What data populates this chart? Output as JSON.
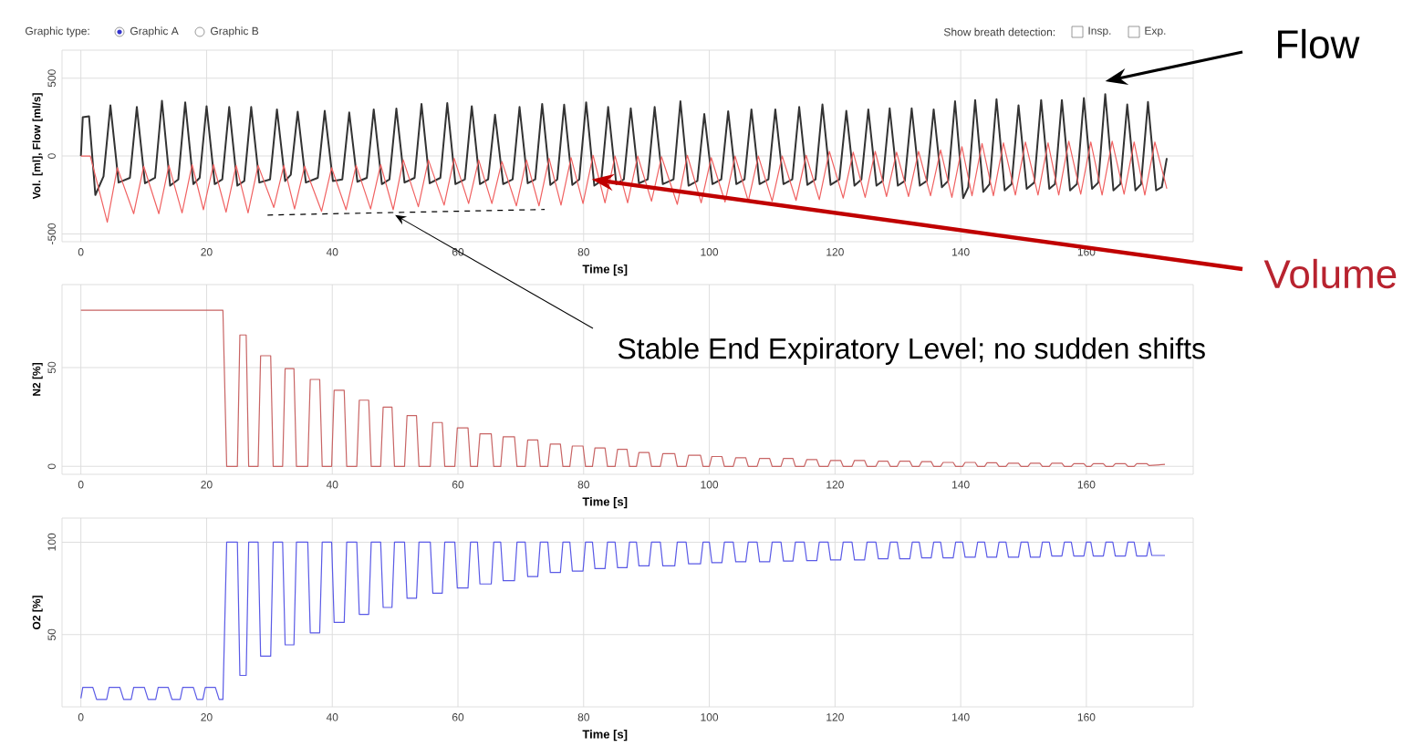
{
  "chart_data": [
    {
      "type": "line",
      "xlabel": "Time [s]",
      "ylabel": "Vol. [ml], Flow [ml/s]",
      "xlim": [
        -3,
        177
      ],
      "ylim": [
        -550,
        680
      ],
      "xticks": [
        0,
        20,
        40,
        60,
        80,
        100,
        120,
        140,
        160
      ],
      "yticks": [
        -500,
        0,
        500
      ],
      "grid": true,
      "annotations": [
        "Graphic type:",
        "Graphic A",
        "Graphic B",
        "Show breath detection:",
        "Insp.",
        "Exp.",
        {
          "text": "Stable End Expiratory Level; no sudden shifts",
          "x": 50,
          "y": -379
        }
      ],
      "series": [
        {
          "name": "Flow",
          "color": "#333333",
          "x": [
            0,
            0.3,
            1.3,
            2.3,
            3.6,
            4.7,
            6.0,
            7.8,
            8.9,
            10.2,
            11.8,
            12.9,
            14.2,
            15.5,
            16.6,
            17.9,
            18.9,
            20.0,
            21.3,
            22.5,
            23.6,
            24.9,
            26.0,
            27.1,
            28.4,
            30.1,
            31.2,
            32.5,
            33.4,
            34.5,
            35.8,
            37.7,
            38.8,
            40.1,
            41.6,
            42.7,
            44.0,
            45.5,
            46.6,
            47.9,
            49.1,
            50.2,
            51.5,
            53.1,
            54.2,
            55.5,
            57.2,
            58.3,
            59.6,
            61.1,
            62.2,
            63.5,
            64.8,
            65.9,
            67.2,
            68.7,
            69.8,
            71.1,
            72.3,
            73.4,
            74.7,
            75.8,
            76.9,
            78.2,
            79.3,
            80.4,
            81.7,
            82.8,
            83.9,
            85.2,
            86.4,
            87.5,
            88.8,
            90.2,
            91.3,
            92.6,
            94.3,
            95.4,
            96.7,
            98.1,
            99.2,
            100.5,
            101.9,
            103.0,
            104.3,
            105.6,
            106.7,
            108.0,
            109.4,
            110.5,
            111.8,
            113.2,
            114.3,
            115.6,
            116.9,
            118.0,
            119.3,
            120.7,
            121.8,
            123.1,
            124.2,
            125.3,
            126.6,
            127.6,
            128.7,
            130.0,
            131.1,
            132.2,
            133.5,
            134.6,
            135.7,
            137.0,
            138.0,
            139.1,
            140.4,
            141.2,
            142.3,
            143.6,
            144.6,
            145.7,
            147.0,
            148.1,
            149.2,
            150.5,
            151.7,
            152.8,
            154.1,
            155.0,
            156.1,
            157.4,
            158.5,
            159.6,
            160.9,
            161.9,
            163.0,
            164.3,
            165.4,
            166.5,
            167.8,
            168.7,
            169.8,
            171.1,
            172.0,
            172.8
          ],
          "values": [
            0,
            250,
            255,
            -250,
            -130,
            325,
            -170,
            -140,
            315,
            -175,
            -140,
            355,
            -190,
            -150,
            345,
            -180,
            -140,
            320,
            -180,
            -150,
            315,
            -190,
            -160,
            315,
            -170,
            -150,
            300,
            -160,
            -120,
            285,
            -170,
            -140,
            290,
            -160,
            -150,
            280,
            -165,
            -140,
            300,
            -180,
            -150,
            305,
            -170,
            -140,
            335,
            -175,
            -140,
            340,
            -180,
            -150,
            320,
            -180,
            -150,
            265,
            -180,
            -150,
            315,
            -175,
            -150,
            335,
            -185,
            -150,
            330,
            -185,
            -150,
            345,
            -190,
            -160,
            315,
            -180,
            -150,
            306,
            -175,
            -150,
            315,
            -180,
            -150,
            352,
            -190,
            -160,
            270,
            -180,
            -150,
            288,
            -180,
            -150,
            300,
            -180,
            -150,
            300,
            -180,
            -150,
            315,
            -185,
            -150,
            331,
            -185,
            -150,
            290,
            -190,
            -150,
            300,
            -190,
            -160,
            306,
            -190,
            -160,
            306,
            -190,
            -160,
            300,
            -200,
            -160,
            352,
            -270,
            -200,
            360,
            -230,
            -180,
            365,
            -220,
            -180,
            326,
            -210,
            -170,
            360,
            -210,
            -180,
            360,
            -220,
            -180,
            372,
            -210,
            -170,
            398,
            -220,
            -180,
            331,
            -220,
            -180,
            347,
            -220,
            -200,
            -13
          ]
        },
        {
          "name": "Volume",
          "color": "#f06262",
          "x": [
            0,
            1.5,
            4.2,
            5.8,
            8.4,
            10.0,
            12.4,
            14.0,
            16.1,
            17.7,
            19.5,
            21.1,
            23.1,
            24.7,
            26.6,
            28.2,
            30.7,
            32.3,
            34.0,
            35.6,
            38.3,
            39.9,
            42.2,
            43.8,
            46.1,
            47.7,
            49.7,
            51.3,
            53.7,
            55.3,
            57.8,
            59.4,
            61.7,
            63.3,
            65.4,
            67.0,
            69.3,
            70.9,
            72.9,
            74.5,
            76.4,
            78.0,
            79.9,
            81.5,
            83.4,
            85.0,
            87.0,
            88.6,
            90.8,
            92.4,
            94.9,
            96.5,
            98.7,
            100.3,
            102.5,
            104.1,
            106.2,
            107.8,
            110.0,
            111.6,
            113.8,
            115.4,
            117.5,
            119.1,
            121.3,
            122.9,
            124.8,
            126.4,
            128.2,
            129.8,
            131.7,
            133.3,
            135.2,
            136.8,
            138.6,
            140.2,
            141.8,
            143.4,
            145.2,
            146.8,
            148.7,
            150.3,
            152.3,
            153.9,
            155.6,
            157.2,
            159.1,
            160.7,
            162.5,
            164.1,
            166.0,
            167.6,
            169.3,
            170.9,
            172.8
          ],
          "values": [
            0,
            0,
            -425,
            -75,
            -370,
            -65,
            -370,
            -60,
            -365,
            -55,
            -345,
            -55,
            -360,
            -60,
            -365,
            -60,
            -330,
            -60,
            -340,
            -65,
            -355,
            -75,
            -345,
            -60,
            -340,
            -55,
            -345,
            -25,
            -325,
            -25,
            -315,
            -15,
            -305,
            -25,
            -305,
            -35,
            -320,
            -25,
            -320,
            -15,
            -315,
            -10,
            -305,
            5,
            -300,
            0,
            -300,
            0,
            -290,
            -5,
            -310,
            5,
            -300,
            -10,
            -295,
            0,
            -290,
            0,
            -290,
            0,
            -285,
            5,
            -280,
            30,
            -270,
            25,
            -265,
            30,
            -260,
            25,
            -260,
            30,
            -255,
            40,
            -265,
            60,
            -255,
            80,
            -255,
            85,
            -250,
            90,
            -250,
            85,
            -250,
            95,
            -245,
            90,
            -250,
            95,
            -245,
            90,
            -250,
            90,
            -210
          ]
        },
        {
          "color": "#000000",
          "line_style": "dashed",
          "x": [
            29.7,
            73.8
          ],
          "values": [
            -379,
            -343
          ]
        }
      ]
    },
    {
      "type": "line",
      "xlabel": "Time [s]",
      "ylabel": "N2 [%]",
      "xlim": [
        -3,
        177
      ],
      "ylim": [
        -4,
        92
      ],
      "xticks": [
        0,
        20,
        40,
        60,
        80,
        100,
        120,
        140,
        160
      ],
      "yticks": [
        0,
        50
      ],
      "grid": true,
      "series": [
        {
          "color": "#c86464",
          "x": [
            0,
            22.6,
            23.2,
            24.9,
            25.3,
            26.3,
            26.7,
            28.2,
            28.6,
            30.2,
            30.6,
            32.1,
            32.5,
            33.9,
            34.3,
            36.1,
            36.5,
            38.0,
            38.4,
            39.9,
            40.3,
            41.9,
            42.3,
            43.9,
            44.3,
            45.8,
            46.2,
            47.7,
            48.1,
            49.5,
            49.9,
            51.5,
            51.9,
            53.4,
            53.8,
            55.6,
            56.0,
            57.5,
            57.9,
            59.5,
            59.9,
            61.6,
            62.0,
            63.1,
            63.5,
            65.3,
            65.7,
            66.8,
            67.2,
            69.0,
            69.4,
            70.7,
            71.1,
            72.7,
            73.1,
            74.3,
            74.7,
            76.3,
            76.7,
            77.8,
            78.2,
            79.9,
            80.3,
            81.4,
            81.8,
            83.4,
            83.8,
            85.0,
            85.4,
            86.9,
            87.3,
            88.4,
            88.8,
            90.4,
            90.8,
            92.2,
            92.6,
            94.5,
            94.9,
            96.3,
            96.7,
            98.6,
            99.0,
            100.0,
            100.4,
            102.0,
            102.4,
            103.8,
            104.2,
            105.8,
            106.2,
            107.6,
            108.0,
            109.6,
            110.0,
            111.4,
            111.8,
            113.3,
            113.7,
            115.1,
            115.5,
            117.1,
            117.5,
            118.9,
            119.3,
            120.9,
            121.3,
            122.7,
            123.1,
            124.7,
            125.1,
            126.5,
            126.9,
            128.4,
            128.8,
            129.9,
            130.3,
            131.9,
            132.3,
            133.4,
            133.8,
            135.3,
            135.7,
            136.8,
            137.2,
            138.8,
            139.2,
            140.3,
            140.7,
            142.3,
            142.7,
            143.8,
            144.2,
            145.7,
            146.1,
            147.2,
            147.6,
            149.2,
            149.6,
            150.7,
            151.1,
            152.6,
            153.0,
            154.1,
            154.5,
            156.1,
            156.5,
            157.6,
            158.0,
            159.6,
            160.0,
            160.7,
            161.1,
            162.7,
            163.1,
            164.2,
            164.6,
            166.2,
            166.6,
            167.6,
            168.0,
            169.6,
            170.0,
            172.5
          ],
          "values": [
            79,
            79,
            0,
            0,
            66.5,
            66.5,
            0,
            0,
            56,
            56,
            0,
            0,
            49.5,
            49.5,
            0,
            0,
            44,
            44,
            0,
            0,
            38.5,
            38.5,
            0,
            0,
            33.5,
            33.5,
            0,
            0,
            30,
            30,
            0,
            0,
            25.7,
            25.7,
            0,
            0,
            22.2,
            22.2,
            0,
            0,
            19.5,
            19.5,
            0,
            0,
            16.5,
            16.5,
            0,
            0,
            15,
            15,
            0,
            0,
            13.4,
            13.4,
            0,
            0,
            11.3,
            11.3,
            0,
            0,
            10.3,
            10.3,
            0,
            0,
            9.3,
            9.3,
            0,
            0,
            8.6,
            8.6,
            0,
            0,
            7,
            7,
            0,
            0,
            6.4,
            6.4,
            0,
            0,
            5.6,
            5.6,
            0,
            0,
            5,
            5,
            0,
            0,
            4.4,
            4.4,
            0,
            0,
            4,
            4,
            0,
            0,
            4,
            4,
            0,
            0,
            3.4,
            3.4,
            0,
            0,
            3,
            3,
            0,
            0,
            3,
            3,
            0,
            0,
            2.6,
            2.6,
            0,
            0,
            2.6,
            2.6,
            0,
            0,
            2.4,
            2.4,
            0,
            0,
            2,
            2,
            0,
            0,
            2,
            2,
            0,
            0,
            1.8,
            1.8,
            0,
            0,
            1.6,
            1.6,
            0,
            0,
            1.6,
            1.6,
            0,
            0,
            1.6,
            1.6,
            0,
            0,
            1.4,
            1.4,
            0,
            0,
            1.4,
            1.4,
            0,
            0,
            1.4,
            1.4,
            0,
            0,
            1.4,
            1.4,
            0.4,
            1
          ]
        }
      ]
    },
    {
      "type": "line",
      "xlabel": "Time [s]",
      "ylabel": "O2 [%]",
      "xlim": [
        -3,
        177
      ],
      "ylim": [
        11,
        113
      ],
      "xticks": [
        0,
        20,
        40,
        60,
        80,
        100,
        120,
        140,
        160
      ],
      "yticks": [
        50,
        100
      ],
      "grid": true,
      "series": [
        {
          "color": "#5a5ae6",
          "x": [
            0,
            0.3,
            1.9,
            2.5,
            4.1,
            4.5,
            6.2,
            6.8,
            8.0,
            8.4,
            10.1,
            10.7,
            11.9,
            12.3,
            13.9,
            14.5,
            15.8,
            16.2,
            17.9,
            18.5,
            19.4,
            19.8,
            21.4,
            22.0,
            22.6,
            23.2,
            24.9,
            25.3,
            26.3,
            26.7,
            28.2,
            28.6,
            30.2,
            30.6,
            32.1,
            32.5,
            33.9,
            34.3,
            36.1,
            36.5,
            38.0,
            38.4,
            39.9,
            40.3,
            41.9,
            42.3,
            43.9,
            44.3,
            45.8,
            46.2,
            47.7,
            48.1,
            49.5,
            49.9,
            51.5,
            51.9,
            53.4,
            53.8,
            55.6,
            56.0,
            57.5,
            57.9,
            59.5,
            59.9,
            61.6,
            62.0,
            63.1,
            63.5,
            65.3,
            65.7,
            66.8,
            67.2,
            69.0,
            69.4,
            70.7,
            71.1,
            72.7,
            73.1,
            74.3,
            74.7,
            76.3,
            76.7,
            77.8,
            78.2,
            79.9,
            80.3,
            81.4,
            81.8,
            83.4,
            83.8,
            85.0,
            85.4,
            86.9,
            87.3,
            88.4,
            88.8,
            90.4,
            90.8,
            92.2,
            92.6,
            94.5,
            94.9,
            96.3,
            96.7,
            98.6,
            99.0,
            100.0,
            100.4,
            102.0,
            102.4,
            103.8,
            104.2,
            105.8,
            106.2,
            107.6,
            108.0,
            109.6,
            110.0,
            111.4,
            111.8,
            113.3,
            113.7,
            115.1,
            115.5,
            117.1,
            117.5,
            118.9,
            119.3,
            120.9,
            121.3,
            122.7,
            123.1,
            124.7,
            125.1,
            126.5,
            126.9,
            128.4,
            128.8,
            129.9,
            130.3,
            131.9,
            132.3,
            133.4,
            133.8,
            135.3,
            135.7,
            136.8,
            137.2,
            138.8,
            139.2,
            140.3,
            140.7,
            142.3,
            142.7,
            143.8,
            144.2,
            145.7,
            146.1,
            147.2,
            147.6,
            149.2,
            149.6,
            150.7,
            151.1,
            152.6,
            153.0,
            154.1,
            154.5,
            156.1,
            156.5,
            157.6,
            158.0,
            159.6,
            160.0,
            160.7,
            161.1,
            162.7,
            163.1,
            164.2,
            164.6,
            166.2,
            166.6,
            167.6,
            168.0,
            169.6,
            170.0,
            170.4,
            172.5
          ],
          "values": [
            15.6,
            21.5,
            21.5,
            15,
            15,
            21.5,
            21.5,
            15,
            15,
            21.5,
            21.5,
            15,
            15,
            21.5,
            21.5,
            15,
            15,
            21.5,
            21.5,
            15,
            15,
            21.5,
            21.5,
            15,
            15,
            100,
            100,
            28,
            28,
            100,
            100,
            38.4,
            38.4,
            100,
            100,
            44.5,
            44.5,
            100,
            100,
            51,
            51,
            100,
            100,
            56.6,
            56.6,
            100,
            100,
            61,
            61,
            100,
            100,
            64.7,
            64.7,
            100,
            100,
            69.7,
            69.7,
            100,
            100,
            72.4,
            72.4,
            100,
            100,
            75.2,
            75.2,
            100,
            100,
            77.4,
            77.4,
            100,
            100,
            79.2,
            79.2,
            100,
            100,
            81.4,
            81.4,
            100,
            100,
            83.6,
            83.6,
            100,
            100,
            84.4,
            84.4,
            100,
            100,
            85.7,
            85.7,
            100,
            100,
            86.2,
            86.2,
            100,
            100,
            87.2,
            87.2,
            100,
            100,
            87.2,
            87.2,
            100,
            100,
            88.3,
            88.3,
            100,
            100,
            88.9,
            88.9,
            100,
            100,
            89.4,
            89.4,
            100,
            100,
            89.4,
            89.4,
            100,
            100,
            89.8,
            89.8,
            100,
            100,
            90,
            90,
            100,
            100,
            90.4,
            90.4,
            100,
            100,
            90.4,
            90.4,
            100,
            100,
            91,
            91,
            100,
            100,
            91,
            91,
            100,
            100,
            91.5,
            91.5,
            100,
            100,
            91.5,
            91.5,
            100,
            100,
            91.9,
            91.9,
            100,
            100,
            91.9,
            91.9,
            100,
            100,
            91.9,
            91.9,
            100,
            100,
            91.9,
            91.9,
            100,
            100,
            92.5,
            92.5,
            100,
            100,
            92.5,
            92.5,
            100,
            100,
            92.5,
            92.5,
            100,
            100,
            92.5,
            92.5,
            100,
            100,
            92.5,
            92.5,
            100,
            92.8,
            92.8
          ]
        }
      ]
    }
  ]
}
